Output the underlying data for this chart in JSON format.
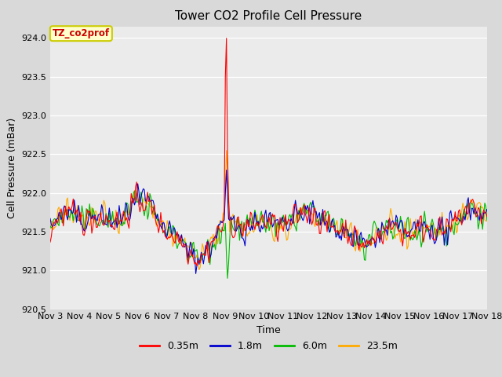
{
  "title": "Tower CO2 Profile Cell Pressure",
  "ylabel": "Cell Pressure (mBar)",
  "xlabel": "Time",
  "annotation_text": "TZ_co2prof",
  "ylim": [
    920.5,
    924.15
  ],
  "xlim": [
    0,
    15
  ],
  "x_tick_labels": [
    "Nov 3",
    "Nov 4",
    "Nov 5",
    "Nov 6",
    "Nov 7",
    "Nov 8",
    "Nov 9",
    "Nov 10",
    "Nov 11",
    "Nov 12",
    "Nov 13",
    "Nov 14",
    "Nov 15",
    "Nov 16",
    "Nov 17",
    "Nov 18"
  ],
  "series_colors": [
    "#ff0000",
    "#0000cd",
    "#00bb00",
    "#ffaa00"
  ],
  "series_labels": [
    "0.35m",
    "1.8m",
    "6.0m",
    "23.5m"
  ],
  "fig_facecolor": "#d9d9d9",
  "ax_facecolor": "#ebebeb",
  "annotation_bg": "#ffffcc",
  "annotation_border": "#cccc00",
  "title_fontsize": 11,
  "axis_fontsize": 9,
  "tick_fontsize": 8,
  "legend_fontsize": 9,
  "seed": 42,
  "n_points": 400,
  "base_pressure": 921.55,
  "noise_scale": 0.12
}
